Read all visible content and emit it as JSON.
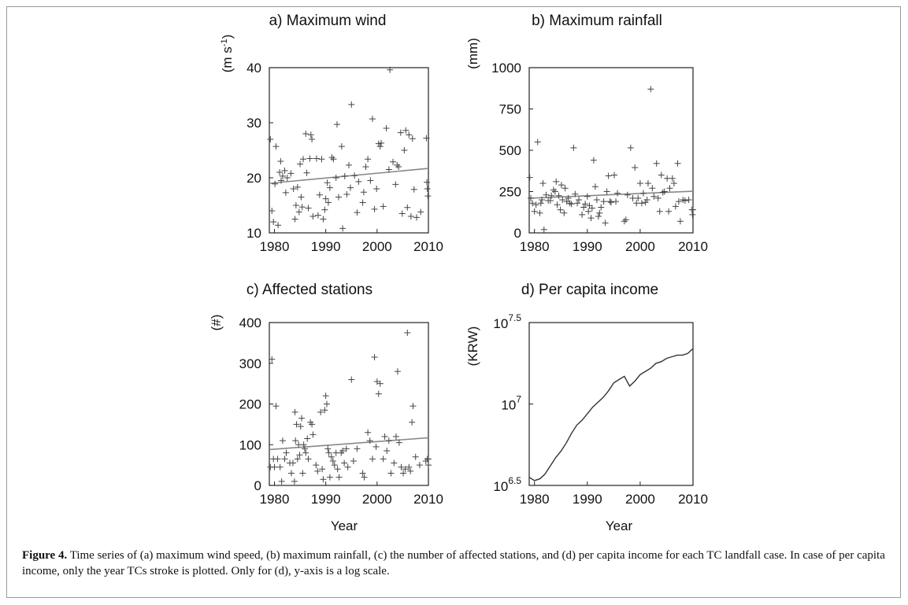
{
  "chart_data": [
    {
      "type": "scatter",
      "title": "a) Maximum wind",
      "ylabel": "(m s-1)",
      "xlabel": "",
      "xlim": [
        1979,
        2010
      ],
      "ylim": [
        10,
        40
      ],
      "xticks": [
        "1980",
        "1990",
        "2000",
        "2010"
      ],
      "yticks": [
        "10",
        "20",
        "30",
        "40"
      ],
      "points": [
        [
          1979.2,
          27
        ],
        [
          1979.5,
          14
        ],
        [
          1979.8,
          12
        ],
        [
          1980.1,
          18.9
        ],
        [
          1980.3,
          25.7
        ],
        [
          1980.7,
          11.4
        ],
        [
          1981,
          21
        ],
        [
          1981.2,
          23
        ],
        [
          1981.3,
          19.5
        ],
        [
          1981.6,
          20.3
        ],
        [
          1982,
          21.3
        ],
        [
          1982.2,
          17.3
        ],
        [
          1982.5,
          20
        ],
        [
          1983.2,
          20.8
        ],
        [
          1983.7,
          18
        ],
        [
          1984,
          12.5
        ],
        [
          1984.2,
          15
        ],
        [
          1984.5,
          18.3
        ],
        [
          1984.8,
          13.8
        ],
        [
          1985,
          22.5
        ],
        [
          1985.2,
          16.5
        ],
        [
          1985.4,
          14.7
        ],
        [
          1985.6,
          23.4
        ],
        [
          1986.1,
          28
        ],
        [
          1986.3,
          20.9
        ],
        [
          1986.6,
          14.5
        ],
        [
          1986.9,
          23.5
        ],
        [
          1987.1,
          27.8
        ],
        [
          1987.3,
          27
        ],
        [
          1987.5,
          13
        ],
        [
          1988.2,
          23.5
        ],
        [
          1988.5,
          13.2
        ],
        [
          1988.8,
          16.9
        ],
        [
          1989.2,
          23.4
        ],
        [
          1989.5,
          12.5
        ],
        [
          1989.8,
          14.2
        ],
        [
          1990,
          16.2
        ],
        [
          1990.3,
          19.1
        ],
        [
          1990.5,
          15.5
        ],
        [
          1990.8,
          18.2
        ],
        [
          1991.2,
          23.7
        ],
        [
          1991.5,
          23.4
        ],
        [
          1992,
          20
        ],
        [
          1992.2,
          29.7
        ],
        [
          1992.5,
          16.5
        ],
        [
          1993.1,
          25.7
        ],
        [
          1993.3,
          10.8
        ],
        [
          1993.7,
          20.3
        ],
        [
          1994.1,
          17
        ],
        [
          1994.5,
          22.3
        ],
        [
          1994.8,
          18.2
        ],
        [
          1995,
          33.3
        ],
        [
          1995.6,
          20.4
        ],
        [
          1996.1,
          13.7
        ],
        [
          1996.4,
          19.3
        ],
        [
          1997.2,
          15.5
        ],
        [
          1997.4,
          17.4
        ],
        [
          1997.8,
          22
        ],
        [
          1998.2,
          23.4
        ],
        [
          1998.7,
          19.5
        ],
        [
          1999.1,
          30.7
        ],
        [
          1999.5,
          14.3
        ],
        [
          1999.9,
          18
        ],
        [
          2000.3,
          26.2
        ],
        [
          2000.6,
          25.7
        ],
        [
          2000.8,
          26.3
        ],
        [
          2001.2,
          14.8
        ],
        [
          2001.8,
          29
        ],
        [
          2002.3,
          21.5
        ],
        [
          2002.5,
          39.6
        ],
        [
          2003.1,
          22.9
        ],
        [
          2003.6,
          18.8
        ],
        [
          2003.9,
          22.3
        ],
        [
          2004.2,
          22
        ],
        [
          2004.6,
          28.2
        ],
        [
          2004.9,
          13.5
        ],
        [
          2005.3,
          25
        ],
        [
          2005.6,
          28.6
        ],
        [
          2005.9,
          14.6
        ],
        [
          2006.2,
          27.8
        ],
        [
          2006.6,
          13
        ],
        [
          2006.9,
          27.1
        ],
        [
          2007.2,
          17.9
        ],
        [
          2007.7,
          12.8
        ],
        [
          2008.5,
          13.8
        ],
        [
          2009.6,
          27.2
        ],
        [
          2009.7,
          19.2
        ],
        [
          2009.8,
          18
        ],
        [
          2009.9,
          16.7
        ]
      ],
      "trend": [
        [
          1979,
          19.0
        ],
        [
          2010,
          21.7
        ]
      ]
    },
    {
      "type": "scatter",
      "title": "b) Maximum rainfall",
      "ylabel": "(mm)",
      "xlabel": "",
      "xlim": [
        1979,
        2010
      ],
      "ylim": [
        0,
        1000
      ],
      "xticks": [
        "1980",
        "1990",
        "2000",
        "2010"
      ],
      "yticks": [
        "0",
        "250",
        "500",
        "750",
        "1000"
      ],
      "points": [
        [
          1979.1,
          335
        ],
        [
          1979.3,
          210
        ],
        [
          1979.6,
          180
        ],
        [
          1980,
          130
        ],
        [
          1980.3,
          170
        ],
        [
          1980.6,
          550
        ],
        [
          1981,
          120
        ],
        [
          1981.2,
          180
        ],
        [
          1981.4,
          200
        ],
        [
          1981.6,
          300
        ],
        [
          1981.8,
          20
        ],
        [
          1982.2,
          230
        ],
        [
          1982.6,
          195
        ],
        [
          1983,
          195
        ],
        [
          1983.2,
          225
        ],
        [
          1983.6,
          260
        ],
        [
          1983.9,
          250
        ],
        [
          1984.1,
          310
        ],
        [
          1984.3,
          170
        ],
        [
          1984.6,
          225
        ],
        [
          1984.9,
          140
        ],
        [
          1985.1,
          290
        ],
        [
          1985.3,
          200
        ],
        [
          1985.6,
          120
        ],
        [
          1985.8,
          270
        ],
        [
          1986.1,
          190
        ],
        [
          1986.4,
          210
        ],
        [
          1986.7,
          180
        ],
        [
          1987,
          175
        ],
        [
          1987.4,
          515
        ],
        [
          1987.7,
          235
        ],
        [
          1988.1,
          180
        ],
        [
          1988.4,
          200
        ],
        [
          1989,
          110
        ],
        [
          1989.3,
          155
        ],
        [
          1989.6,
          175
        ],
        [
          1990,
          220
        ],
        [
          1990.2,
          130
        ],
        [
          1990.4,
          165
        ],
        [
          1990.7,
          90
        ],
        [
          1990.9,
          150
        ],
        [
          1991.2,
          440
        ],
        [
          1991.5,
          280
        ],
        [
          1991.8,
          200
        ],
        [
          1992.1,
          100
        ],
        [
          1992.3,
          120
        ],
        [
          1992.6,
          155
        ],
        [
          1993.1,
          190
        ],
        [
          1993.4,
          60
        ],
        [
          1993.7,
          250
        ],
        [
          1994,
          345
        ],
        [
          1994.3,
          190
        ],
        [
          1994.5,
          185
        ],
        [
          1995.1,
          350
        ],
        [
          1995.4,
          190
        ],
        [
          1995.7,
          240
        ],
        [
          1997,
          70
        ],
        [
          1997.3,
          80
        ],
        [
          1997.6,
          230
        ],
        [
          1998.2,
          515
        ],
        [
          1998.6,
          210
        ],
        [
          1999,
          395
        ],
        [
          1999.3,
          180
        ],
        [
          1999.6,
          210
        ],
        [
          2000,
          300
        ],
        [
          2000.3,
          180
        ],
        [
          2000.6,
          240
        ],
        [
          2001,
          185
        ],
        [
          2001.3,
          200
        ],
        [
          2001.5,
          300
        ],
        [
          2002,
          870
        ],
        [
          2002.3,
          270
        ],
        [
          2002.6,
          220
        ],
        [
          2003.1,
          420
        ],
        [
          2003.4,
          210
        ],
        [
          2003.7,
          130
        ],
        [
          2004,
          350
        ],
        [
          2004.3,
          245
        ],
        [
          2004.6,
          250
        ],
        [
          2005.1,
          330
        ],
        [
          2005.4,
          130
        ],
        [
          2005.6,
          270
        ],
        [
          2006.1,
          330
        ],
        [
          2006.4,
          300
        ],
        [
          2006.7,
          160
        ],
        [
          2007.1,
          420
        ],
        [
          2007.3,
          190
        ],
        [
          2007.6,
          70
        ],
        [
          2008.1,
          200
        ],
        [
          2008.5,
          195
        ],
        [
          2009.2,
          200
        ],
        [
          2009.8,
          140
        ],
        [
          2009.9,
          110
        ],
        [
          2010,
          140
        ]
      ],
      "trend": [
        [
          1979,
          210
        ],
        [
          2010,
          252
        ]
      ]
    },
    {
      "type": "scatter",
      "title": "c) Affected stations",
      "ylabel": "(#)",
      "xlabel": "Year",
      "xlim": [
        1979,
        2010
      ],
      "ylim": [
        0,
        400
      ],
      "xticks": [
        "1980",
        "1990",
        "2000",
        "2010"
      ],
      "yticks": [
        "0",
        "100",
        "200",
        "300",
        "400"
      ],
      "points": [
        [
          1979.2,
          45
        ],
        [
          1979.5,
          310
        ],
        [
          1979.8,
          65
        ],
        [
          1980,
          45
        ],
        [
          1980.3,
          195
        ],
        [
          1980.6,
          65
        ],
        [
          1981.1,
          45
        ],
        [
          1981.4,
          10
        ],
        [
          1981.6,
          110
        ],
        [
          1982,
          65
        ],
        [
          1982.3,
          80
        ],
        [
          1983,
          55
        ],
        [
          1983.3,
          30
        ],
        [
          1983.6,
          55
        ],
        [
          1983.9,
          10
        ],
        [
          1984,
          180
        ],
        [
          1984.1,
          110
        ],
        [
          1984.3,
          150
        ],
        [
          1984.5,
          65
        ],
        [
          1984.7,
          100
        ],
        [
          1984.9,
          75
        ],
        [
          1985.1,
          145
        ],
        [
          1985.3,
          165
        ],
        [
          1985.5,
          30
        ],
        [
          1985.7,
          100
        ],
        [
          1985.9,
          90
        ],
        [
          1986.1,
          80
        ],
        [
          1986.4,
          115
        ],
        [
          1986.6,
          65
        ],
        [
          1987,
          155
        ],
        [
          1987.3,
          150
        ],
        [
          1987.5,
          125
        ],
        [
          1988.1,
          50
        ],
        [
          1988.4,
          35
        ],
        [
          1989,
          180
        ],
        [
          1989.3,
          40
        ],
        [
          1989.5,
          15
        ],
        [
          1989.8,
          185
        ],
        [
          1990,
          220
        ],
        [
          1990.2,
          200
        ],
        [
          1990.4,
          90
        ],
        [
          1990.6,
          80
        ],
        [
          1990.8,
          20
        ],
        [
          1991.1,
          70
        ],
        [
          1991.4,
          60
        ],
        [
          1991.7,
          50
        ],
        [
          1992,
          80
        ],
        [
          1992.3,
          40
        ],
        [
          1992.6,
          20
        ],
        [
          1993,
          80
        ],
        [
          1993.3,
          85
        ],
        [
          1993.6,
          55
        ],
        [
          1994,
          90
        ],
        [
          1994.3,
          45
        ],
        [
          1995,
          260
        ],
        [
          1995.4,
          60
        ],
        [
          1996.1,
          90
        ],
        [
          1997.2,
          30
        ],
        [
          1997.5,
          20
        ],
        [
          1998.2,
          130
        ],
        [
          1998.6,
          110
        ],
        [
          1999.1,
          65
        ],
        [
          1999.5,
          315
        ],
        [
          1999.8,
          95
        ],
        [
          2000,
          255
        ],
        [
          2000.3,
          225
        ],
        [
          2000.6,
          250
        ],
        [
          2001.2,
          65
        ],
        [
          2001.5,
          120
        ],
        [
          2001.9,
          85
        ],
        [
          2002.3,
          110
        ],
        [
          2002.7,
          30
        ],
        [
          2003.3,
          55
        ],
        [
          2003.7,
          120
        ],
        [
          2004,
          280
        ],
        [
          2004.3,
          105
        ],
        [
          2004.7,
          45
        ],
        [
          2005.1,
          30
        ],
        [
          2005.5,
          40
        ],
        [
          2005.9,
          375
        ],
        [
          2006.2,
          45
        ],
        [
          2006.5,
          35
        ],
        [
          2006.8,
          155
        ],
        [
          2007,
          195
        ],
        [
          2007.5,
          70
        ],
        [
          2008.3,
          50
        ],
        [
          2009.5,
          60
        ],
        [
          2009.8,
          65
        ],
        [
          2010,
          65
        ],
        [
          2010,
          50
        ]
      ],
      "trend": [
        [
          1979,
          88
        ],
        [
          2010,
          117
        ]
      ]
    },
    {
      "type": "line",
      "title": "d) Per capita income",
      "ylabel": "(KRW)",
      "xlabel": "Year",
      "xlim": [
        1979,
        2010
      ],
      "ylim": [
        6.5,
        7.5
      ],
      "log_scale_y": true,
      "xticks": [
        "1980",
        "1990",
        "2000",
        "2010"
      ],
      "yticks": [
        "6.5",
        "7",
        "7.5"
      ],
      "series": [
        {
          "x": [
            1979,
            1980,
            1981,
            1982,
            1983,
            1984,
            1985,
            1986,
            1987,
            1988,
            1989,
            1990,
            1991,
            1992,
            1993,
            1994,
            1995,
            1996,
            1997,
            1998,
            1999,
            2000,
            2001,
            2002,
            2003,
            2004,
            2005,
            2006,
            2007,
            2008,
            2009,
            2010
          ],
          "values": [
            6.55,
            6.53,
            6.54,
            6.57,
            6.62,
            6.67,
            6.71,
            6.76,
            6.82,
            6.87,
            6.9,
            6.94,
            6.98,
            7.01,
            7.04,
            7.08,
            7.13,
            7.15,
            7.17,
            7.11,
            7.14,
            7.18,
            7.2,
            7.22,
            7.25,
            7.26,
            7.28,
            7.29,
            7.3,
            7.3,
            7.31,
            7.34
          ]
        }
      ]
    }
  ],
  "caption": {
    "label": "Figure 4.",
    "text": " Time series of (a) maximum wind speed, (b) maximum rainfall, (c) the number of affected stations, and (d) per capita income for each TC landfall case. In case of per capita income, only the year TCs stroke is plotted. Only for (d), y-axis is a log scale."
  }
}
